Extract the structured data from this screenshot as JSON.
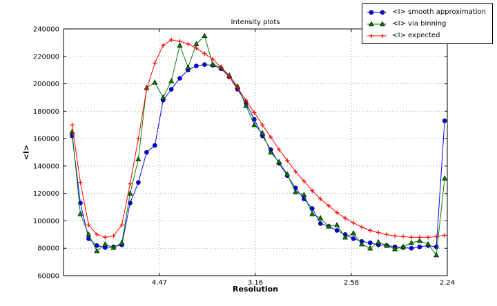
{
  "chart_data": {
    "type": "line",
    "title": "Intensity plots",
    "xlabel": "Resolution",
    "ylabel": "<I>",
    "x_scale": "linear in 1/d^2; tick labels show resolution d in Angstrom",
    "xlim": [
      0,
      0.2
    ],
    "ylim": [
      60000,
      240000
    ],
    "grid": true,
    "legend_position": "upper right",
    "x_ticks": [
      {
        "value": 0.05,
        "label": "4.47"
      },
      {
        "value": 0.1,
        "label": "3.16"
      },
      {
        "value": 0.15,
        "label": "2.58"
      },
      {
        "value": 0.2,
        "label": "2.24"
      }
    ],
    "y_ticks": [
      60000,
      80000,
      100000,
      120000,
      140000,
      160000,
      180000,
      200000,
      220000,
      240000
    ],
    "x": [
      0.0045,
      0.0088,
      0.0131,
      0.0174,
      0.0217,
      0.0261,
      0.0304,
      0.0347,
      0.039,
      0.0433,
      0.0476,
      0.0519,
      0.0562,
      0.0606,
      0.0649,
      0.0692,
      0.0735,
      0.0778,
      0.0821,
      0.0864,
      0.0907,
      0.0951,
      0.0994,
      0.1037,
      0.108,
      0.1123,
      0.1166,
      0.1209,
      0.1253,
      0.1296,
      0.1339,
      0.1382,
      0.1425,
      0.1468,
      0.1511,
      0.1554,
      0.1598,
      0.1641,
      0.1684,
      0.1727,
      0.177,
      0.1813,
      0.1856,
      0.19,
      0.1943,
      0.1986
    ],
    "series": [
      {
        "id": "smooth-approximation",
        "name": "<I> smooth approximation",
        "color": "#0000ff",
        "marker": "circle",
        "values": [
          162000,
          113000,
          87000,
          82000,
          80500,
          81000,
          82500,
          113000,
          128000,
          150000,
          155000,
          188000,
          196000,
          204000,
          210000,
          213000,
          214000,
          213500,
          211000,
          205000,
          196000,
          186000,
          174000,
          162000,
          152000,
          142000,
          133000,
          124000,
          116000,
          109000,
          98000,
          96000,
          93000,
          90000,
          87000,
          85000,
          84000,
          82500,
          82000,
          81000,
          80500,
          80000,
          81000,
          82000,
          81000,
          173000
        ]
      },
      {
        "id": "via-binning",
        "name": "<I> via binning",
        "color": "#007f00",
        "marker": "triangle",
        "values": [
          165000,
          105000,
          90000,
          78000,
          83000,
          80500,
          84000,
          120000,
          145000,
          197000,
          201000,
          190000,
          202000,
          228000,
          212000,
          229000,
          235000,
          214000,
          212000,
          206000,
          198000,
          184000,
          170000,
          164000,
          150000,
          143000,
          134000,
          121000,
          119000,
          105000,
          102000,
          96000,
          97000,
          88000,
          91000,
          83000,
          80000,
          84500,
          82000,
          79500,
          81000,
          84000,
          85500,
          83000,
          75000,
          131000
        ]
      },
      {
        "id": "expected",
        "name": "<I> expected",
        "color": "#ff0000",
        "marker": "plus",
        "values": [
          170000,
          128000,
          97000,
          90000,
          88000,
          89000,
          97000,
          127000,
          160000,
          196000,
          215000,
          228000,
          232000,
          231000,
          229000,
          226000,
          222000,
          218000,
          212000,
          205000,
          197000,
          188000,
          179000,
          170000,
          161000,
          152000,
          144000,
          136000,
          129000,
          122000,
          116000,
          111000,
          106000,
          102000,
          98500,
          95500,
          93000,
          91500,
          90000,
          89000,
          88500,
          88000,
          88000,
          88000,
          88500,
          89500
        ]
      }
    ],
    "style": {
      "grid_color": "#999999",
      "frame_color": "#000000",
      "background": "#ffffff"
    }
  }
}
